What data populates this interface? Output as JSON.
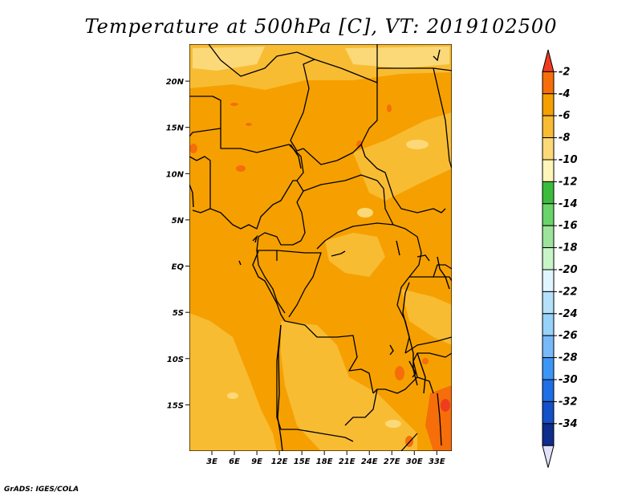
{
  "title": "Temperature at 500hPa [C], VT: 2019102500",
  "credit": "GrADS: IGES/COLA",
  "map": {
    "lon_labels": [
      "3E",
      "6E",
      "9E",
      "12E",
      "15E",
      "18E",
      "21E",
      "24E",
      "27E",
      "30E",
      "33E"
    ],
    "lat_labels": [
      "20N",
      "15N",
      "10N",
      "5N",
      "EQ",
      "5S",
      "10S",
      "15S"
    ],
    "lon_range": [
      0,
      35
    ],
    "lat_range": [
      -20,
      24
    ]
  },
  "colorbar": {
    "labels": [
      "-2",
      "-4",
      "-6",
      "-8",
      "-10",
      "-12",
      "-14",
      "-16",
      "-18",
      "-20",
      "-22",
      "-24",
      "-26",
      "-28",
      "-30",
      "-32",
      "-34"
    ],
    "colors": [
      "#f03c1e",
      "#f56e0a",
      "#f5a000",
      "#f8bc33",
      "#fcd978",
      "#fff5b8",
      "#3cbc3c",
      "#6ad46a",
      "#9ce49c",
      "#c8f5c8",
      "#dff5ff",
      "#b4e0fa",
      "#96d2fa",
      "#78b9fa",
      "#3c96f5",
      "#1e6ee6",
      "#1450c8",
      "#0e2d8c",
      "#e1e1fa"
    ]
  }
}
